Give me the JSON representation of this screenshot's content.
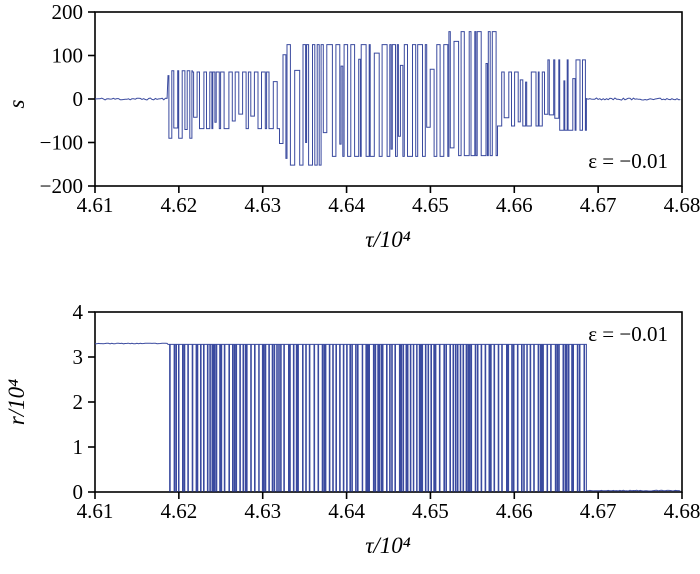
{
  "figure": {
    "background": "#ffffff",
    "line_color": "#3a4a9f",
    "axis_color": "#000000"
  },
  "chart_data": [
    {
      "id": "top",
      "type": "line",
      "title": "",
      "xlabel": "τ/10⁴",
      "ylabel": "s",
      "annotation": {
        "text": "ε = −0.01",
        "position": "bottom-right"
      },
      "xlim": [
        4.61,
        4.68
      ],
      "ylim": [
        -200,
        200
      ],
      "xtick_values": [
        4.61,
        4.62,
        4.63,
        4.64,
        4.65,
        4.66,
        4.67,
        4.68
      ],
      "xtick_labels": [
        "4.61",
        "4.62",
        "4.63",
        "4.64",
        "4.65",
        "4.66",
        "4.67",
        "4.68"
      ],
      "ytick_values": [
        -200,
        -100,
        0,
        100,
        200
      ],
      "ytick_labels": [
        "−200",
        "−100",
        "0",
        "100",
        "200"
      ],
      "grid": false,
      "legend": null,
      "seed": 11,
      "quiet_step": 0.0002,
      "burst_dwell": [
        0.0001,
        0.0006
      ],
      "segments": [
        {
          "type": "quiet",
          "x0": 4.61,
          "x1": 4.6187,
          "base": 0,
          "noise": 2.5
        },
        {
          "type": "burst",
          "x0": 4.6187,
          "x1": 4.6216,
          "hi": 65,
          "lo": -90
        },
        {
          "type": "burst",
          "x0": 4.6216,
          "x1": 4.632,
          "hi": 62,
          "lo": -68
        },
        {
          "type": "burst",
          "x0": 4.632,
          "x1": 4.6378,
          "hi": 125,
          "lo": -152
        },
        {
          "type": "burst",
          "x0": 4.6378,
          "x1": 4.6522,
          "hi": 125,
          "lo": -132
        },
        {
          "type": "burst",
          "x0": 4.6522,
          "x1": 4.658,
          "hi": 155,
          "lo": -130
        },
        {
          "type": "burst",
          "x0": 4.658,
          "x1": 4.6636,
          "hi": 62,
          "lo": -62
        },
        {
          "type": "burst",
          "x0": 4.6636,
          "x1": 4.6686,
          "hi": 90,
          "lo": -72
        },
        {
          "type": "quiet",
          "x0": 4.6686,
          "x1": 4.68,
          "base": 0,
          "noise": 2.5
        }
      ]
    },
    {
      "id": "bottom",
      "type": "line",
      "title": "",
      "xlabel": "τ/10⁴",
      "ylabel": "r/10⁴",
      "annotation": {
        "text": "ε = −0.01",
        "position": "top-right"
      },
      "xlim": [
        4.61,
        4.68
      ],
      "ylim": [
        0,
        4
      ],
      "xtick_values": [
        4.61,
        4.62,
        4.63,
        4.64,
        4.65,
        4.66,
        4.67,
        4.68
      ],
      "xtick_labels": [
        "4.61",
        "4.62",
        "4.63",
        "4.64",
        "4.65",
        "4.66",
        "4.67",
        "4.68"
      ],
      "ytick_values": [
        0,
        1,
        2,
        3,
        4
      ],
      "ytick_labels": [
        "0",
        "1",
        "2",
        "3",
        "4"
      ],
      "grid": false,
      "legend": null,
      "seed": 23,
      "quiet_step": 0.0002,
      "spike_gap": [
        6e-05,
        0.0005
      ],
      "spike_width": 7e-05,
      "segments": [
        {
          "type": "flat",
          "x0": 4.61,
          "x1": 4.6187,
          "level": 3.3,
          "noise": 0.008
        },
        {
          "type": "spikes",
          "x0": 4.6187,
          "x1": 4.6686,
          "base": 3.28,
          "floor": 0.02
        },
        {
          "type": "flat",
          "x0": 4.6686,
          "x1": 4.68,
          "level": 0.03,
          "noise": 0.008
        }
      ]
    }
  ]
}
